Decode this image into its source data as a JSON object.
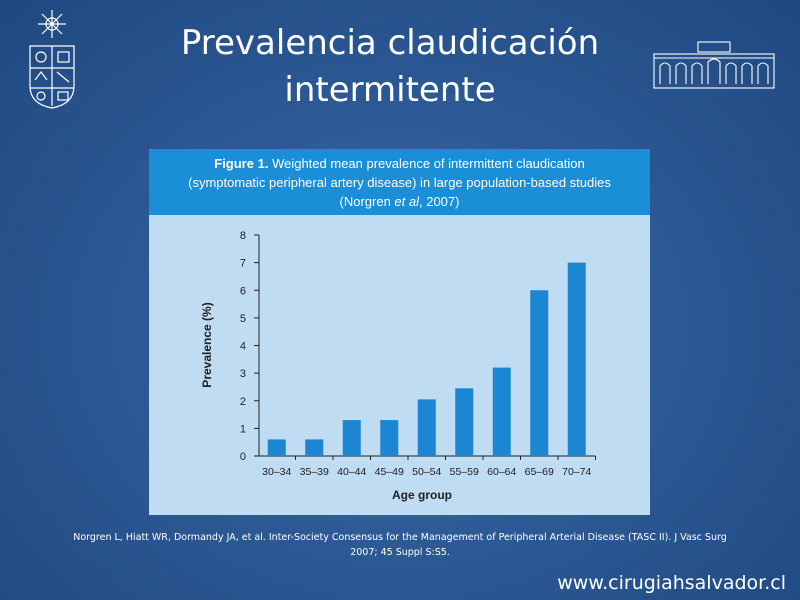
{
  "slide": {
    "title": "Prevalencia claudicación intermitente",
    "citation": "Norgren L, Hiatt WR, Dormandy JA, et al. Inter-Society Consensus for the Management of Peripheral Arterial Disease (TASC II). J Vasc Surg 2007; 45 Suppl S:S5.",
    "website": "www.cirugiahsalvador.cl"
  },
  "figure": {
    "label": "Figure 1.",
    "caption_line1": "Weighted mean prevalence of intermittent claudication",
    "caption_line2": "(symptomatic peripheral artery disease) in large population-based studies",
    "caption_line3_pre": "(Norgren ",
    "caption_line3_em": "et al",
    "caption_line3_post": ", 2007)"
  },
  "colors": {
    "bar": "#1b87d3",
    "figure_header": "#1b8ed8",
    "figure_background": "#bfdcf3"
  },
  "chart_data": {
    "type": "bar",
    "categories": [
      "30–34",
      "35–39",
      "40–44",
      "45–49",
      "50–54",
      "55–59",
      "60–64",
      "65–69",
      "70–74"
    ],
    "values": [
      0.6,
      0.6,
      1.3,
      1.3,
      2.05,
      2.45,
      3.2,
      6.0,
      7.0
    ],
    "xlabel": "Age group",
    "ylabel": "Prevalence (%)",
    "ylim": [
      0,
      8
    ],
    "yticks": [
      0,
      1,
      2,
      3,
      4,
      5,
      6,
      7,
      8
    ],
    "grid": false
  }
}
